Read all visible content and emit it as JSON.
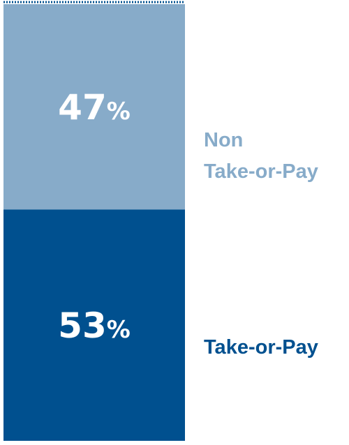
{
  "chart_data": {
    "type": "bar",
    "stacked": true,
    "categories": [
      null
    ],
    "series": [
      {
        "name": "Take-or-Pay",
        "color": "#00508f",
        "values": [
          53
        ],
        "value_labels": [
          "53%"
        ]
      },
      {
        "name": "Non Take-or-Pay",
        "color": "#87abc9",
        "values": [
          47
        ],
        "value_labels": [
          "47%"
        ]
      }
    ],
    "ylim": [
      0,
      100
    ]
  }
}
